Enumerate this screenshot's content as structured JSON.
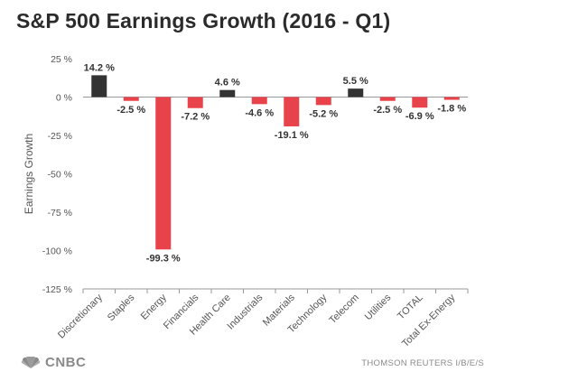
{
  "chart_data": {
    "type": "bar",
    "title": "S&P 500 Earnings Growth (2016 - Q1)",
    "ylabel": "Earnings Growth",
    "xlabel": "",
    "ylim": [
      -125,
      25
    ],
    "yticks": [
      25,
      0,
      -25,
      -50,
      -75,
      -100,
      -125
    ],
    "ytick_labels": [
      "25 %",
      "0 %",
      "-25 %",
      "-50 %",
      "-75 %",
      "-100 %",
      "-125 %"
    ],
    "categories": [
      "Discretionary",
      "Staples",
      "Energy",
      "Financials",
      "Health Care",
      "Industrials",
      "Materials",
      "Technology",
      "Telecom",
      "Utilities",
      "TOTAL",
      "Total Ex-Energy"
    ],
    "values": [
      14.2,
      -2.5,
      -99.3,
      -7.2,
      4.6,
      -4.6,
      -19.1,
      -5.2,
      5.5,
      -2.5,
      -6.9,
      -1.8
    ],
    "data_labels": [
      "14.2 %",
      "-2.5 %",
      "-99.3 %",
      "-7.2 %",
      "4.6 %",
      "-4.6 %",
      "-19.1 %",
      "-5.2 %",
      "5.5 %",
      "-2.5 %",
      "-6.9 %",
      "-1.8 %"
    ],
    "colors": {
      "positive": "#333333",
      "negative": "#e8434b",
      "axis": "#999999",
      "text": "#555555"
    }
  },
  "branding": {
    "logo_text": "CNBC",
    "logo_icon": "peacock-icon",
    "source": "THOMSON REUTERS I/B/E/S"
  }
}
